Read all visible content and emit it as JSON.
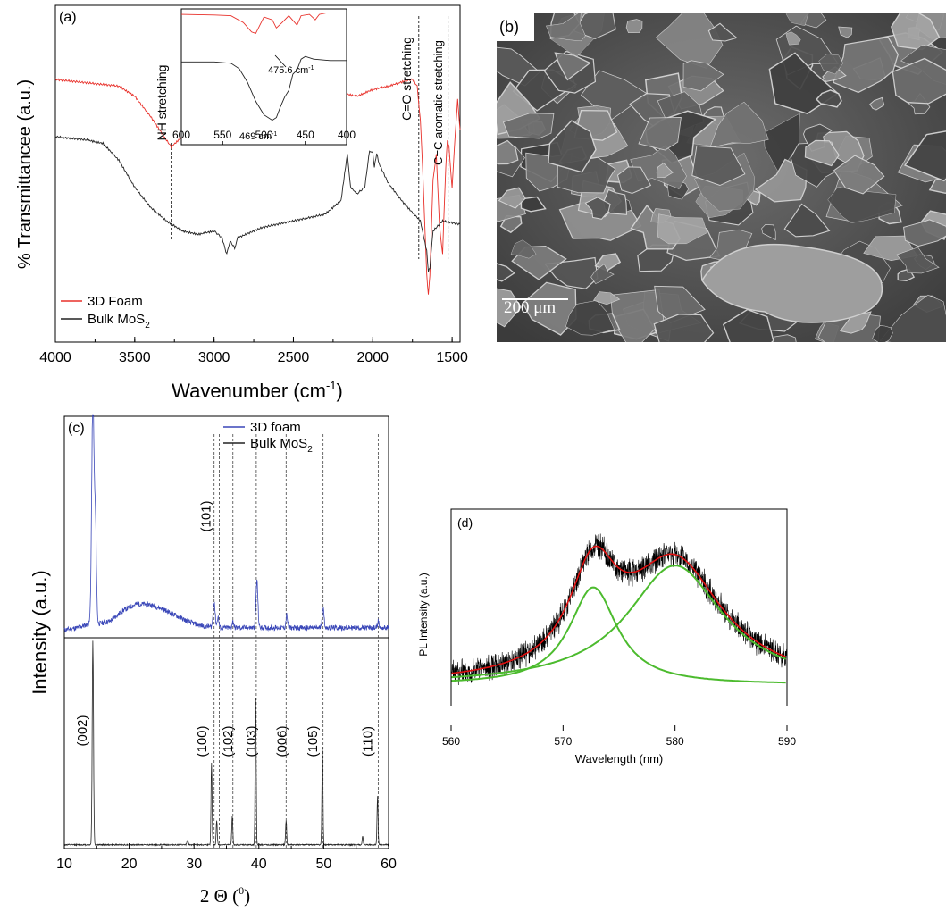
{
  "panels": {
    "a": {
      "label": "(a)",
      "xlabel_text": "Wavenumber (cm",
      "xlabel_sup": "-1",
      "xlabel_close": ")",
      "ylabel": "% Transmittancee (a.u.)",
      "legend": {
        "foam": "3D Foam",
        "bulk_text": "Bulk MoS",
        "bulk_sub": "2"
      },
      "annotations": {
        "nh": "NH stretching",
        "co": "C=O stretching",
        "cc": "C=C aromatic stretching"
      },
      "inset": {
        "label1_text": "475.6 cm",
        "label1_sup": "-1",
        "label2_text": "469 cm",
        "label2_sup": "-1"
      }
    },
    "b": {
      "label": "(b)",
      "scale_text": "200 μm"
    },
    "c": {
      "label": "(c)",
      "ylabel": "Intensity (a.u.)",
      "xlabel_text": "2 Θ (",
      "xlabel_sup": "0",
      "xlabel_close": ")",
      "legend": {
        "foam": "3D foam",
        "bulk_text": "Bulk MoS",
        "bulk_sub": "2"
      }
    },
    "d": {
      "label": "(d)",
      "xlabel": "Wavelength (nm)",
      "ylabel": "PL Intensity (a.u.)"
    }
  },
  "colors": {
    "foam_ftir": "#e8302a",
    "bulk": "#222222",
    "foam_xrd": "#3a47b8",
    "pl_fit": "#e01010",
    "pl_component": "#4cbb2e",
    "pl_raw": "#000000",
    "sem_bg": "#5a5a5a"
  },
  "chart_data": [
    {
      "panel": "a",
      "type": "line",
      "xlim": [
        4000,
        1450
      ],
      "xticks": [
        4000,
        3500,
        3000,
        2500,
        2000,
        1500
      ],
      "grid": false,
      "legend_position": "bottom-left",
      "reference_lines": [
        3270,
        1710,
        1525
      ],
      "series": [
        {
          "name": "3D Foam",
          "points": [
            [
              4000,
              0.78
            ],
            [
              3800,
              0.77
            ],
            [
              3600,
              0.76
            ],
            [
              3500,
              0.73
            ],
            [
              3400,
              0.67
            ],
            [
              3300,
              0.6
            ],
            [
              3270,
              0.58
            ],
            [
              3200,
              0.61
            ],
            [
              3100,
              0.66
            ],
            [
              3000,
              0.69
            ],
            [
              2980,
              0.7
            ],
            [
              2950,
              0.68
            ],
            [
              2920,
              0.7
            ],
            [
              2850,
              0.69
            ],
            [
              2800,
              0.71
            ],
            [
              2600,
              0.73
            ],
            [
              2400,
              0.74
            ],
            [
              2200,
              0.74
            ],
            [
              2100,
              0.73
            ],
            [
              2000,
              0.75
            ],
            [
              1900,
              0.76
            ],
            [
              1800,
              0.775
            ],
            [
              1750,
              0.78
            ],
            [
              1720,
              0.76
            ],
            [
              1700,
              0.66
            ],
            [
              1680,
              0.45
            ],
            [
              1660,
              0.2
            ],
            [
              1650,
              0.14
            ],
            [
              1640,
              0.2
            ],
            [
              1620,
              0.48
            ],
            [
              1600,
              0.56
            ],
            [
              1580,
              0.35
            ],
            [
              1560,
              0.26
            ],
            [
              1540,
              0.52
            ],
            [
              1530,
              0.6
            ],
            [
              1520,
              0.58
            ],
            [
              1500,
              0.46
            ],
            [
              1480,
              0.62
            ],
            [
              1465,
              0.72
            ],
            [
              1450,
              0.63
            ]
          ]
        },
        {
          "name": "Bulk MoS2",
          "points": [
            [
              4000,
              0.61
            ],
            [
              3800,
              0.6
            ],
            [
              3700,
              0.59
            ],
            [
              3600,
              0.54
            ],
            [
              3500,
              0.46
            ],
            [
              3400,
              0.4
            ],
            [
              3300,
              0.36
            ],
            [
              3200,
              0.33
            ],
            [
              3100,
              0.32
            ],
            [
              3000,
              0.33
            ],
            [
              2950,
              0.31
            ],
            [
              2920,
              0.26
            ],
            [
              2900,
              0.3
            ],
            [
              2870,
              0.28
            ],
            [
              2850,
              0.31
            ],
            [
              2700,
              0.34
            ],
            [
              2500,
              0.36
            ],
            [
              2300,
              0.38
            ],
            [
              2200,
              0.42
            ],
            [
              2160,
              0.56
            ],
            [
              2140,
              0.46
            ],
            [
              2100,
              0.44
            ],
            [
              2050,
              0.46
            ],
            [
              2020,
              0.57
            ],
            [
              2000,
              0.56
            ],
            [
              1990,
              0.52
            ],
            [
              1975,
              0.56
            ],
            [
              1960,
              0.53
            ],
            [
              1900,
              0.47
            ],
            [
              1800,
              0.41
            ],
            [
              1700,
              0.36
            ],
            [
              1660,
              0.27
            ],
            [
              1650,
              0.21
            ],
            [
              1640,
              0.22
            ],
            [
              1620,
              0.33
            ],
            [
              1560,
              0.36
            ],
            [
              1450,
              0.35
            ]
          ]
        }
      ]
    },
    {
      "panel": "a-inset",
      "type": "line",
      "xlim": [
        600,
        400
      ],
      "xticks": [
        600,
        550,
        500,
        450,
        400
      ],
      "series": [
        {
          "name": "3D Foam",
          "points": [
            [
              600,
              0.96
            ],
            [
              560,
              0.955
            ],
            [
              540,
              0.95
            ],
            [
              525,
              0.9
            ],
            [
              515,
              0.83
            ],
            [
              510,
              0.82
            ],
            [
              505,
              0.88
            ],
            [
              500,
              0.94
            ],
            [
              490,
              0.92
            ],
            [
              485,
              0.86
            ],
            [
              478,
              0.9
            ],
            [
              470,
              0.95
            ],
            [
              460,
              0.88
            ],
            [
              455,
              0.95
            ],
            [
              445,
              0.96
            ],
            [
              438,
              0.92
            ],
            [
              433,
              0.96
            ],
            [
              425,
              0.97
            ],
            [
              410,
              0.97
            ],
            [
              400,
              0.97
            ]
          ]
        },
        {
          "name": "Bulk MoS2",
          "points": [
            [
              600,
              0.61
            ],
            [
              560,
              0.61
            ],
            [
              540,
              0.6
            ],
            [
              530,
              0.56
            ],
            [
              520,
              0.46
            ],
            [
              510,
              0.32
            ],
            [
              500,
              0.22
            ],
            [
              490,
              0.18
            ],
            [
              485,
              0.2
            ],
            [
              480,
              0.28
            ],
            [
              475,
              0.35
            ],
            [
              470,
              0.4
            ],
            [
              465,
              0.52
            ],
            [
              460,
              0.55
            ],
            [
              455,
              0.63
            ],
            [
              450,
              0.65
            ],
            [
              440,
              0.63
            ],
            [
              420,
              0.62
            ],
            [
              400,
              0.62
            ]
          ]
        }
      ]
    },
    {
      "panel": "c",
      "type": "line",
      "xlim": [
        10,
        60
      ],
      "xticks": [
        10,
        20,
        30,
        40,
        50,
        60
      ],
      "grid": false,
      "legend_position": "top-right",
      "reference_lines": [
        33.1,
        33.9,
        36.0,
        39.6,
        44.2,
        49.9,
        58.4
      ],
      "peak_labels": [
        {
          "x": 14.4,
          "label": "(002)"
        },
        {
          "x": 32.7,
          "label": "(100)"
        },
        {
          "x": 33.5,
          "label": "(101)"
        },
        {
          "x": 35.9,
          "label": "(102)"
        },
        {
          "x": 39.5,
          "label": "(103)"
        },
        {
          "x": 44.2,
          "label": "(006)"
        },
        {
          "x": 49.8,
          "label": "(105)"
        },
        {
          "x": 58.3,
          "label": "(110)"
        }
      ],
      "series": [
        {
          "name": "3D foam",
          "background": [
            [
              10,
              0.02
            ],
            [
              12,
              0.03
            ],
            [
              14,
              0.05
            ],
            [
              15.5,
              0.05
            ],
            [
              17,
              0.06
            ],
            [
              19,
              0.11
            ],
            [
              21,
              0.14
            ],
            [
              23,
              0.14
            ],
            [
              25,
              0.12
            ],
            [
              27,
              0.09
            ],
            [
              29,
              0.06
            ],
            [
              31,
              0.04
            ],
            [
              34,
              0.03
            ],
            [
              40,
              0.03
            ],
            [
              50,
              0.03
            ],
            [
              60,
              0.03
            ]
          ],
          "peaks": [
            [
              14.4,
              1.05,
              0.18
            ],
            [
              14.8,
              0.45,
              0.15
            ],
            [
              33.1,
              0.12,
              0.15
            ],
            [
              33.7,
              0.05,
              0.12
            ],
            [
              36.0,
              0.03,
              0.12
            ],
            [
              39.7,
              0.22,
              0.15
            ],
            [
              44.3,
              0.06,
              0.12
            ],
            [
              49.9,
              0.09,
              0.15
            ],
            [
              58.4,
              0.03,
              0.12
            ]
          ]
        },
        {
          "name": "Bulk MoS2",
          "background": [
            [
              10,
              0.01
            ],
            [
              60,
              0.01
            ]
          ],
          "peaks": [
            [
              14.4,
              1.0,
              0.1
            ],
            [
              29.0,
              0.02,
              0.1
            ],
            [
              32.7,
              0.4,
              0.08
            ],
            [
              33.5,
              0.12,
              0.08
            ],
            [
              35.9,
              0.14,
              0.08
            ],
            [
              39.5,
              0.72,
              0.08
            ],
            [
              44.2,
              0.12,
              0.08
            ],
            [
              49.8,
              0.48,
              0.08
            ],
            [
              56.0,
              0.04,
              0.08
            ],
            [
              58.3,
              0.24,
              0.08
            ]
          ]
        }
      ]
    },
    {
      "panel": "d",
      "type": "line",
      "xlim": [
        560,
        590
      ],
      "xticks": [
        560,
        570,
        580,
        590
      ],
      "grid": false,
      "series": [
        {
          "name": "",
          "role": "raw",
          "noise": 0.045
        },
        {
          "name": "",
          "role": "component",
          "lorentz": [
            572.7,
            0.58,
            2.6
          ],
          "baseline": 0.05
        },
        {
          "name": "",
          "role": "component",
          "lorentz": [
            580.0,
            0.71,
            5.2
          ],
          "baseline": 0.05
        },
        {
          "name": "",
          "role": "fit"
        }
      ]
    }
  ]
}
